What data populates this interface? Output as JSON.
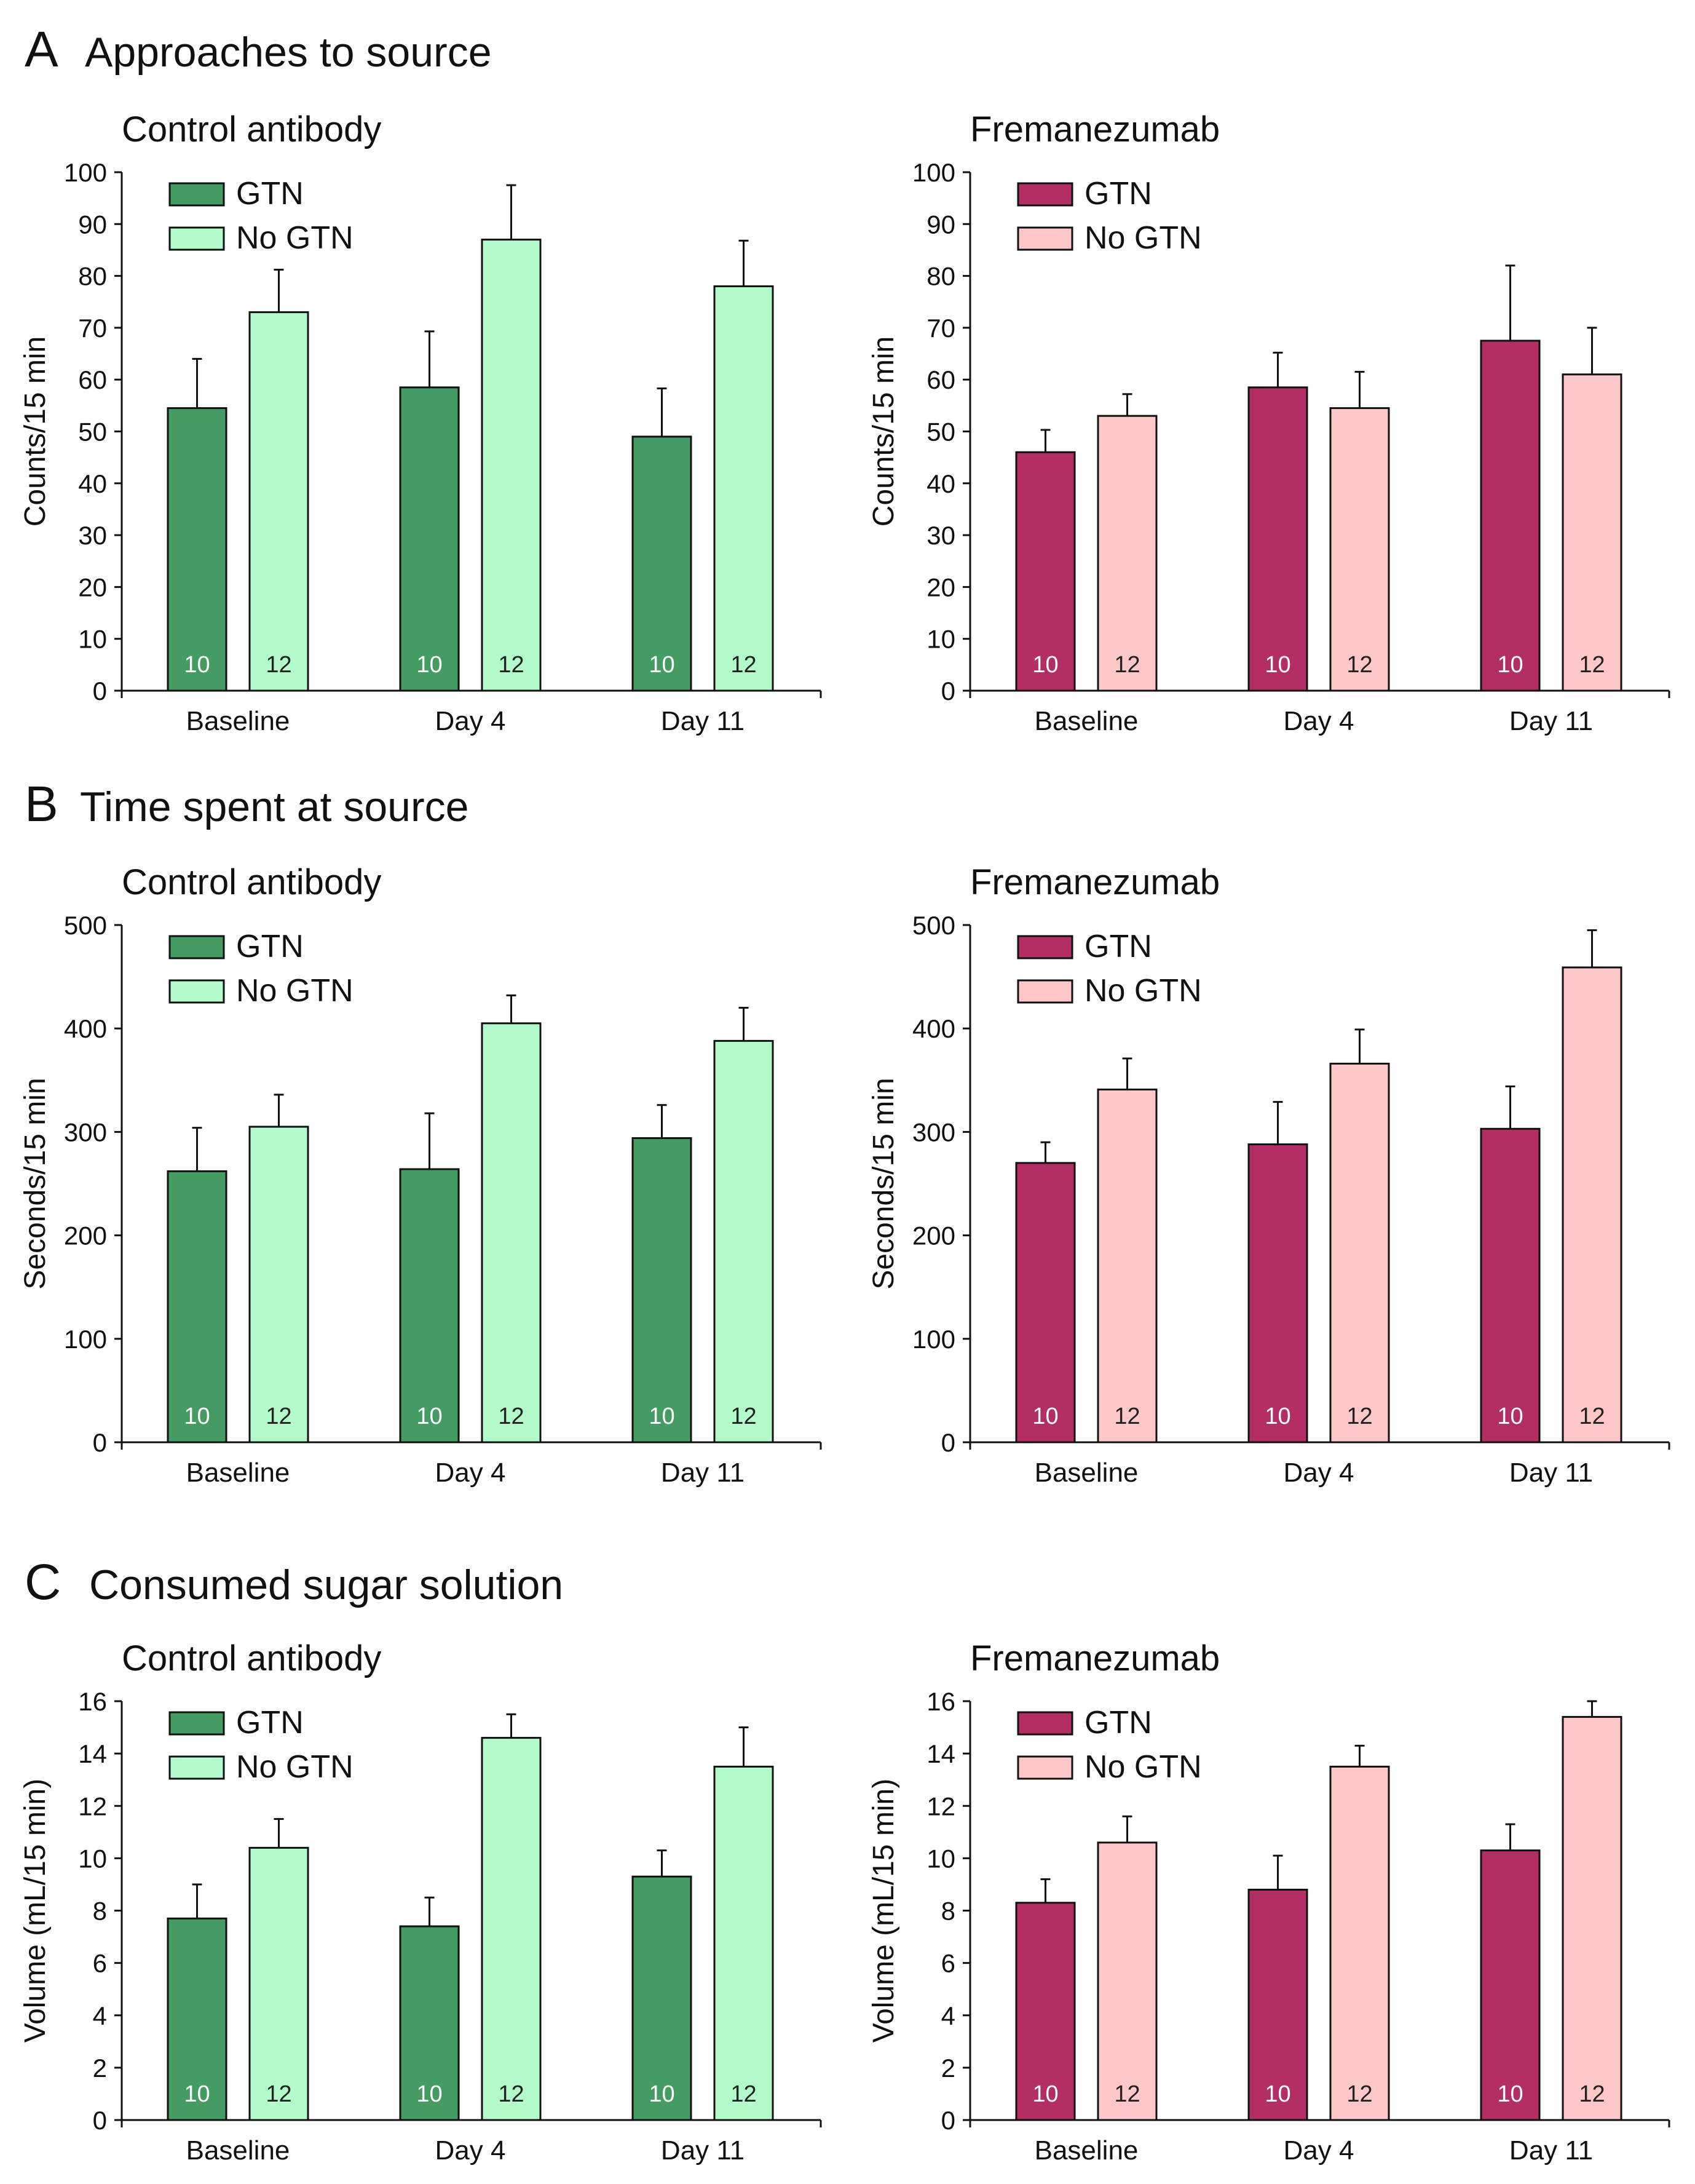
{
  "colors": {
    "control_gtn": "#459c63",
    "control_nogtn": "#b3fbcb",
    "frem_gtn": "#b32e65",
    "frem_nogtn": "#fec8c8",
    "n_on_dark": "#ffffff",
    "n_on_light": "#222222"
  },
  "panels": [
    {
      "letter": "A",
      "title": "Approaches to source",
      "charts": [
        {
          "chart_data": {
            "type": "bar",
            "title": "Control antibody",
            "xlabel": "",
            "ylabel": "Counts/15 min",
            "ylim": [
              0,
              100
            ],
            "ticks": [
              "0",
              "10",
              "20",
              "30",
              "40",
              "50",
              "60",
              "70",
              "80",
              "90",
              "100"
            ],
            "categories": [
              "Baseline",
              "Day 4",
              "Day 11"
            ],
            "series": [
              {
                "name": "GTN",
                "color_key": "control_gtn",
                "values": [
                  54.5,
                  58.5,
                  49
                ],
                "errors": [
                  9.5,
                  10.8,
                  9.3
                ],
                "n": [
                  "10",
                  "10",
                  "10"
                ]
              },
              {
                "name": "No GTN",
                "color_key": "control_nogtn",
                "values": [
                  73,
                  87,
                  78
                ],
                "errors": [
                  8.2,
                  10.5,
                  8.8
                ],
                "n": [
                  "12",
                  "12",
                  "12"
                ]
              }
            ],
            "legend": "top-left"
          }
        },
        {
          "chart_data": {
            "type": "bar",
            "title": "Fremanezumab",
            "xlabel": "",
            "ylabel": "Counts/15 min",
            "ylim": [
              0,
              100
            ],
            "ticks": [
              "0",
              "10",
              "20",
              "30",
              "40",
              "50",
              "60",
              "70",
              "80",
              "90",
              "100"
            ],
            "categories": [
              "Baseline",
              "Day 4",
              "Day 11"
            ],
            "series": [
              {
                "name": "GTN",
                "color_key": "frem_gtn",
                "values": [
                  46,
                  58.5,
                  67.5
                ],
                "errors": [
                  4.3,
                  6.7,
                  14.5
                ],
                "n": [
                  "10",
                  "10",
                  "10"
                ]
              },
              {
                "name": "No GTN",
                "color_key": "frem_nogtn",
                "values": [
                  53,
                  54.5,
                  61
                ],
                "errors": [
                  4.2,
                  7,
                  9
                ],
                "n": [
                  "12",
                  "12",
                  "12"
                ]
              }
            ],
            "legend": "top-left"
          }
        }
      ]
    },
    {
      "letter": "B",
      "title": "Time spent at source",
      "charts": [
        {
          "chart_data": {
            "type": "bar",
            "title": "Control antibody",
            "xlabel": "",
            "ylabel": "Seconds/15 min",
            "ylim": [
              0,
              500
            ],
            "ticks": [
              "0",
              "100",
              "200",
              "300",
              "400",
              "500"
            ],
            "categories": [
              "Baseline",
              "Day 4",
              "Day 11"
            ],
            "series": [
              {
                "name": "GTN",
                "color_key": "control_gtn",
                "values": [
                  262,
                  264,
                  294
                ],
                "errors": [
                  42,
                  54,
                  32
                ],
                "n": [
                  "10",
                  "10",
                  "10"
                ]
              },
              {
                "name": "No GTN",
                "color_key": "control_nogtn",
                "values": [
                  305,
                  405,
                  388
                ],
                "errors": [
                  31,
                  27,
                  32
                ],
                "n": [
                  "12",
                  "12",
                  "12"
                ]
              }
            ],
            "legend": "top-left"
          }
        },
        {
          "chart_data": {
            "type": "bar",
            "title": "Fremanezumab",
            "xlabel": "",
            "ylabel": "Seconds/15 min",
            "ylim": [
              0,
              500
            ],
            "ticks": [
              "0",
              "100",
              "200",
              "300",
              "400",
              "500"
            ],
            "categories": [
              "Baseline",
              "Day 4",
              "Day 11"
            ],
            "series": [
              {
                "name": "GTN",
                "color_key": "frem_gtn",
                "values": [
                  270,
                  288,
                  303
                ],
                "errors": [
                  20,
                  41,
                  41
                ],
                "n": [
                  "10",
                  "10",
                  "10"
                ]
              },
              {
                "name": "No GTN",
                "color_key": "frem_nogtn",
                "values": [
                  341,
                  366,
                  459
                ],
                "errors": [
                  30,
                  33,
                  36
                ],
                "n": [
                  "12",
                  "12",
                  "12"
                ]
              }
            ],
            "legend": "top-left"
          }
        }
      ]
    },
    {
      "letter": "C",
      "title": "Consumed sugar solution",
      "charts": [
        {
          "chart_data": {
            "type": "bar",
            "title": "Control antibody",
            "xlabel": "",
            "ylabel": "Volume (mL/15 min)",
            "ylim": [
              0,
              16
            ],
            "ticks": [
              "0",
              "2",
              "4",
              "6",
              "8",
              "10",
              "12",
              "14",
              "16"
            ],
            "categories": [
              "Baseline",
              "Day 4",
              "Day 11"
            ],
            "series": [
              {
                "name": "GTN",
                "color_key": "control_gtn",
                "values": [
                  7.7,
                  7.4,
                  9.3
                ],
                "errors": [
                  1.3,
                  1.1,
                  1.0
                ],
                "n": [
                  "10",
                  "10",
                  "10"
                ]
              },
              {
                "name": "No GTN",
                "color_key": "control_nogtn",
                "values": [
                  10.4,
                  14.6,
                  13.5
                ],
                "errors": [
                  1.1,
                  0.9,
                  1.5
                ],
                "n": [
                  "12",
                  "12",
                  "12"
                ]
              }
            ],
            "legend": "top-left"
          }
        },
        {
          "chart_data": {
            "type": "bar",
            "title": "Fremanezumab",
            "xlabel": "",
            "ylabel": "Volume (mL/15 min)",
            "ylim": [
              0,
              16
            ],
            "ticks": [
              "0",
              "2",
              "4",
              "6",
              "8",
              "10",
              "12",
              "14",
              "16"
            ],
            "categories": [
              "Baseline",
              "Day 4",
              "Day 11"
            ],
            "series": [
              {
                "name": "GTN",
                "color_key": "frem_gtn",
                "values": [
                  8.3,
                  8.8,
                  10.3
                ],
                "errors": [
                  0.9,
                  1.3,
                  1.0
                ],
                "n": [
                  "10",
                  "10",
                  "10"
                ]
              },
              {
                "name": "No GTN",
                "color_key": "frem_nogtn",
                "values": [
                  10.6,
                  13.5,
                  15.4
                ],
                "errors": [
                  1.0,
                  0.8,
                  0.6
                ],
                "n": [
                  "12",
                  "12",
                  "12"
                ]
              }
            ],
            "legend": "top-left"
          }
        }
      ]
    }
  ]
}
